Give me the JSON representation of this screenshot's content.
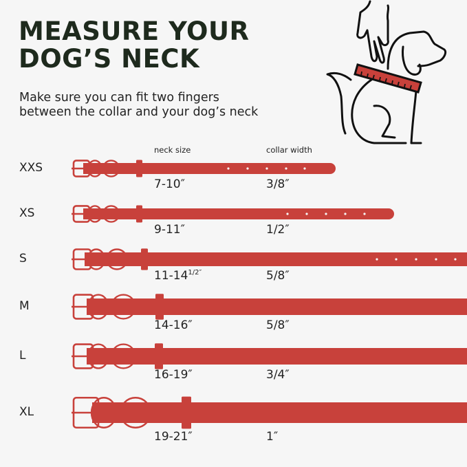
{
  "title": {
    "line1": "MEASURE YOUR",
    "line2": "DOG’S  NECK"
  },
  "subtitle": {
    "line1": "Make sure you can fit two fingers",
    "line2": "between the collar and your dog’s neck"
  },
  "headers": {
    "neck_size": "neck size",
    "collar_width": "collar width"
  },
  "accent_color": "#c8413b",
  "illustration": "hand-measuring-dog-neck-with-ruler-collar-icon",
  "sizes": [
    {
      "label": "XXS",
      "neck": "7-10″",
      "neck_sup": "",
      "width": "3/8″"
    },
    {
      "label": "XS",
      "neck": "9-11″",
      "neck_sup": "",
      "width": "1/2″"
    },
    {
      "label": "S",
      "neck": "11-14",
      "neck_sup": "1/2″",
      "width": "5/8″"
    },
    {
      "label": "M",
      "neck": "14-16″",
      "neck_sup": "",
      "width": "5/8″"
    },
    {
      "label": "L",
      "neck": "16-19″",
      "neck_sup": "",
      "width": "3/4″"
    },
    {
      "label": "XL",
      "neck": "19-21″",
      "neck_sup": "",
      "width": "1″"
    }
  ]
}
